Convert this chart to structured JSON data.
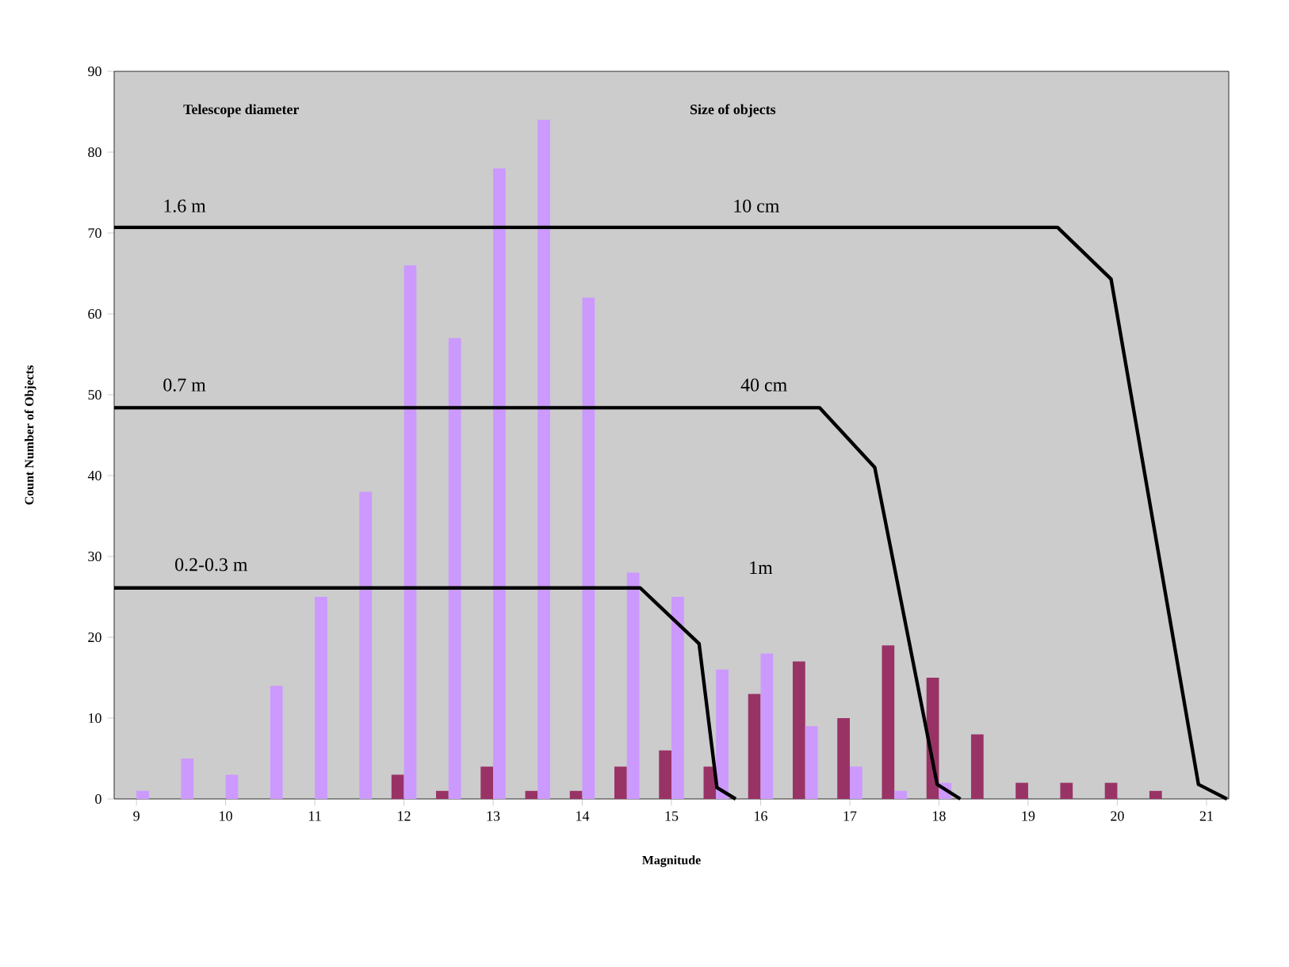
{
  "chart_data": {
    "type": "bar",
    "xlabel": "Magnitude",
    "ylabel": "Count Number of Objects",
    "x": [
      9,
      9.5,
      10,
      10.5,
      11,
      11.5,
      12,
      12.5,
      13,
      13.5,
      14,
      14.5,
      15,
      15.5,
      16,
      16.5,
      17,
      17.5,
      18,
      18.5,
      19,
      19.5,
      20,
      20.5,
      21
    ],
    "xlim": [
      8.75,
      21.25
    ],
    "xticks": [
      9,
      10,
      11,
      12,
      13,
      14,
      15,
      16,
      17,
      18,
      19,
      20,
      21
    ],
    "ylim": [
      0,
      90
    ],
    "yticks": [
      0,
      10,
      20,
      30,
      40,
      50,
      60,
      70,
      80,
      90
    ],
    "series": [
      {
        "color": "#993366",
        "values": [
          0,
          0,
          0,
          0,
          0,
          0,
          3,
          1,
          4,
          1,
          1,
          4,
          6,
          4,
          13,
          17,
          10,
          19,
          15,
          8,
          2,
          2,
          2,
          1,
          0
        ]
      },
      {
        "color": "#cc99ff",
        "values": [
          1,
          5,
          3,
          14,
          25,
          38,
          66,
          57,
          78,
          84,
          62,
          28,
          25,
          16,
          18,
          9,
          4,
          1,
          2,
          0,
          0,
          0,
          0,
          0,
          0
        ]
      },
      {
        "type": "line",
        "color": "#000000",
        "x": [
          8.75,
          19.33,
          19.93,
          20.91,
          21.23
        ],
        "values": [
          70.7,
          70.7,
          64.3,
          1.8,
          0
        ]
      },
      {
        "type": "line",
        "color": "#000000",
        "x": [
          8.75,
          16.66,
          17.28,
          17.98,
          18.24
        ],
        "values": [
          48.4,
          48.4,
          41,
          1.8,
          0
        ]
      },
      {
        "type": "line",
        "color": "#000000",
        "x": [
          8.75,
          14.65,
          15.31,
          15.51,
          15.72
        ],
        "values": [
          26.1,
          26.1,
          19.2,
          1.4,
          0
        ]
      }
    ],
    "annotations": [
      "Telescope diameter",
      "Size of objects",
      "1.6 m",
      "10 cm",
      "0.7 m",
      "40 cm",
      "0.2-0.3 m",
      "1m"
    ]
  }
}
